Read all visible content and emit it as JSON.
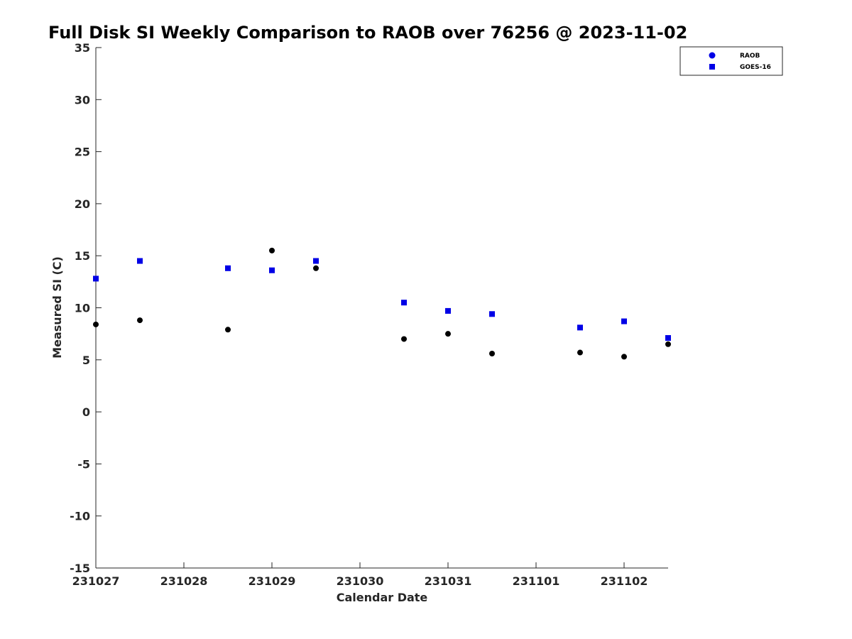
{
  "chart_data": {
    "type": "scatter",
    "title": "Full Disk SI Weekly Comparison to RAOB over 76256 @ 2023-11-02",
    "xlabel": "Calendar Date",
    "ylabel": "Measured SI (C)",
    "xlim": [
      "2023-10-27",
      "2023-11-02 12:00"
    ],
    "ylim": [
      -15,
      35
    ],
    "x_ticks": [
      "2023-10-27",
      "2023-10-28",
      "2023-10-29",
      "2023-10-30",
      "2023-10-31",
      "2023-11-01",
      "2023-11-02"
    ],
    "x_tick_labels": [
      "231027",
      "231028",
      "231029",
      "231030",
      "231031",
      "231101",
      "231102"
    ],
    "y_ticks": [
      35,
      30,
      25,
      20,
      15,
      10,
      5,
      0,
      -5,
      -10,
      -15
    ],
    "y_tick_labels": [
      "35",
      "30",
      "25",
      "20",
      "15",
      "10",
      "5",
      "0",
      "-5",
      "-10",
      "-15"
    ],
    "grid": false,
    "legend_position": "top-right",
    "series": [
      {
        "name": "RAOB",
        "marker": "circle",
        "color": "#000000",
        "legend_color": "#0000e6",
        "points": [
          {
            "x": "2023-10-27 00:00",
            "y": 8.4
          },
          {
            "x": "2023-10-27 12:00",
            "y": 8.8
          },
          {
            "x": "2023-10-28 12:00",
            "y": 7.9
          },
          {
            "x": "2023-10-29 00:00",
            "y": 15.5
          },
          {
            "x": "2023-10-29 12:00",
            "y": 13.8
          },
          {
            "x": "2023-10-30 12:00",
            "y": 7.0
          },
          {
            "x": "2023-10-31 00:00",
            "y": 7.5
          },
          {
            "x": "2023-10-31 12:00",
            "y": 5.6
          },
          {
            "x": "2023-11-01 12:00",
            "y": 5.7
          },
          {
            "x": "2023-11-02 00:00",
            "y": 5.3
          },
          {
            "x": "2023-11-02 12:00",
            "y": 6.5
          }
        ]
      },
      {
        "name": "GOES-16",
        "marker": "square",
        "color": "#0000e6",
        "legend_color": "#0000e6",
        "points": [
          {
            "x": "2023-10-27 00:00",
            "y": 12.8
          },
          {
            "x": "2023-10-27 12:00",
            "y": 14.5
          },
          {
            "x": "2023-10-28 12:00",
            "y": 13.8
          },
          {
            "x": "2023-10-29 00:00",
            "y": 13.6
          },
          {
            "x": "2023-10-29 12:00",
            "y": 14.5
          },
          {
            "x": "2023-10-30 12:00",
            "y": 10.5
          },
          {
            "x": "2023-10-31 00:00",
            "y": 9.7
          },
          {
            "x": "2023-10-31 12:00",
            "y": 9.4
          },
          {
            "x": "2023-11-01 12:00",
            "y": 8.1
          },
          {
            "x": "2023-11-02 00:00",
            "y": 8.7
          },
          {
            "x": "2023-11-02 12:00",
            "y": 7.1
          }
        ]
      }
    ]
  }
}
